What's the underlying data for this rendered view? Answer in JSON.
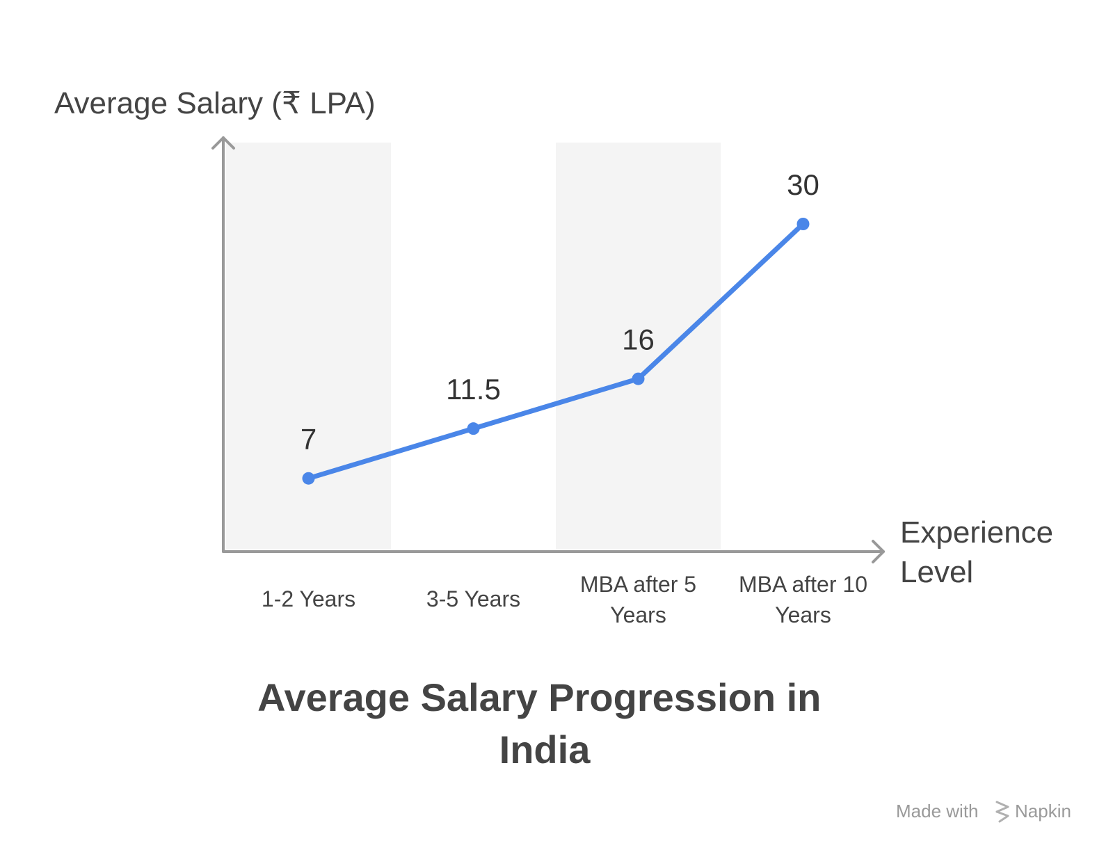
{
  "chart_data": {
    "type": "line",
    "title": "Average Salary Progression in India",
    "ylabel": "Average Salary (₹ LPA)",
    "xlabel": "Experience Level",
    "categories": [
      "1-2 Years",
      "3-5 Years",
      "MBA after 5 Years",
      "MBA after 10 Years"
    ],
    "values": [
      7,
      11.5,
      16,
      30
    ],
    "value_labels": [
      "7",
      "11.5",
      "16",
      "30"
    ],
    "ylim": [
      0,
      33
    ],
    "grid": false,
    "series_color": "#4a86e8",
    "band_color": "#f4f4f4",
    "axis_color": "#999999"
  },
  "footer": {
    "made_with": "Made with",
    "brand": "Napkin",
    "icon": "napkin-logo-icon"
  }
}
